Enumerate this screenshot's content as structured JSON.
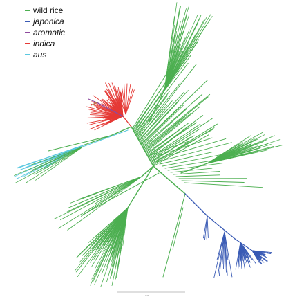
{
  "legend": {
    "items": [
      {
        "label": "wild rice",
        "color": "#4caf50",
        "italic": false
      },
      {
        "label": "japonica",
        "color": "#3a5bb5",
        "italic": true
      },
      {
        "label": "aromatic",
        "color": "#8e4a9e",
        "italic": true
      },
      {
        "label": "indica",
        "color": "#e53935",
        "italic": true
      },
      {
        "label": "aus",
        "color": "#5bc8e0",
        "italic": true
      }
    ]
  },
  "scale_bar": {
    "label": "0.05"
  },
  "colors": {
    "wild": "#4caf50",
    "japonica": "#3a5bb5",
    "aromatic": "#8e4a9e",
    "indica": "#e53935",
    "aus": "#5bc8e0",
    "scale": "#cccccc"
  }
}
